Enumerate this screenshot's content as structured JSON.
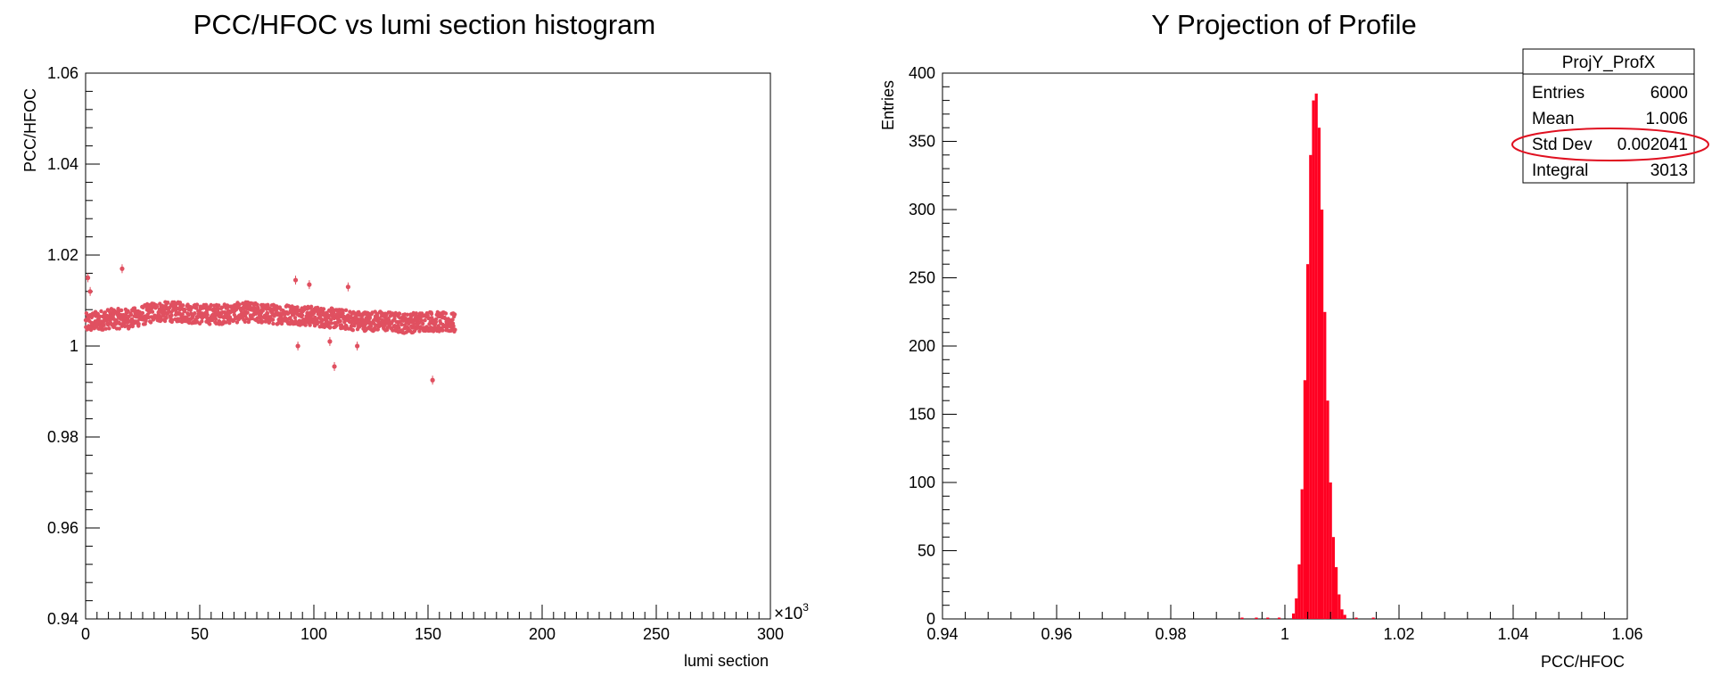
{
  "chart_data": [
    {
      "type": "scatter",
      "title": "PCC/HFOC vs lumi section histogram",
      "xlabel": "lumi section",
      "ylabel": "PCC/HFOC",
      "x_multiplier_label": "×10",
      "x_multiplier_exp": "3",
      "xlim": [
        0,
        300
      ],
      "ylim": [
        0.94,
        1.06
      ],
      "x_ticks": [
        0,
        50,
        100,
        150,
        200,
        250,
        300
      ],
      "x_tick_labels": [
        "0",
        "50",
        "100",
        "150",
        "200",
        "250",
        "300"
      ],
      "y_ticks": [
        0.94,
        0.96,
        0.98,
        1.0,
        1.02,
        1.04,
        1.06
      ],
      "y_tick_labels": [
        "0.94",
        "0.96",
        "0.98",
        "1",
        "1.02",
        "1.04",
        "1.06"
      ],
      "marker_color": "#e05060",
      "band": {
        "x_start": 0,
        "x_end": 162,
        "center_profile": [
          [
            0,
            1.005
          ],
          [
            10,
            1.006
          ],
          [
            20,
            1.006
          ],
          [
            30,
            1.0075
          ],
          [
            40,
            1.0075
          ],
          [
            50,
            1.007
          ],
          [
            60,
            1.007
          ],
          [
            70,
            1.0075
          ],
          [
            80,
            1.007
          ],
          [
            90,
            1.007
          ],
          [
            100,
            1.0065
          ],
          [
            110,
            1.006
          ],
          [
            120,
            1.0055
          ],
          [
            130,
            1.0055
          ],
          [
            140,
            1.005
          ],
          [
            150,
            1.0055
          ],
          [
            162,
            1.005
          ]
        ],
        "half_width": 0.0022
      },
      "outliers": [
        [
          1,
          1.015
        ],
        [
          2,
          1.012
        ],
        [
          16,
          1.017
        ],
        [
          92,
          1.0145
        ],
        [
          98,
          1.0135
        ],
        [
          93,
          1.0
        ],
        [
          109,
          0.9955
        ],
        [
          107,
          1.001
        ],
        [
          115,
          1.013
        ],
        [
          119,
          1.0
        ],
        [
          152,
          0.9925
        ]
      ]
    },
    {
      "type": "bar",
      "title": "Y Projection of Profile",
      "xlabel": "PCC/HFOC",
      "ylabel": "Entries",
      "xlim": [
        0.94,
        1.06
      ],
      "ylim": [
        0,
        400
      ],
      "x_ticks": [
        0.94,
        0.96,
        0.98,
        1.0,
        1.02,
        1.04,
        1.06
      ],
      "x_tick_labels": [
        "0.94",
        "0.96",
        "0.98",
        "1",
        "1.02",
        "1.04",
        "1.06"
      ],
      "y_ticks": [
        0,
        50,
        100,
        150,
        200,
        250,
        300,
        350,
        400
      ],
      "y_tick_labels": [
        "0",
        "50",
        "100",
        "150",
        "200",
        "250",
        "300",
        "350",
        "400"
      ],
      "bar_color": "#ff0022",
      "bin_width": 0.0005,
      "bins": [
        {
          "x": 1.0015,
          "y": 4
        },
        {
          "x": 1.002,
          "y": 15
        },
        {
          "x": 1.0025,
          "y": 40
        },
        {
          "x": 1.003,
          "y": 95
        },
        {
          "x": 1.0035,
          "y": 175
        },
        {
          "x": 1.004,
          "y": 260
        },
        {
          "x": 1.0045,
          "y": 340
        },
        {
          "x": 1.005,
          "y": 380
        },
        {
          "x": 1.0055,
          "y": 385
        },
        {
          "x": 1.006,
          "y": 360
        },
        {
          "x": 1.0065,
          "y": 300
        },
        {
          "x": 1.007,
          "y": 225
        },
        {
          "x": 1.0075,
          "y": 160
        },
        {
          "x": 1.008,
          "y": 100
        },
        {
          "x": 1.0085,
          "y": 60
        },
        {
          "x": 1.009,
          "y": 38
        },
        {
          "x": 1.0095,
          "y": 18
        },
        {
          "x": 1.01,
          "y": 7
        },
        {
          "x": 1.0105,
          "y": 3
        }
      ],
      "stray_bins": [
        {
          "x": 0.9925,
          "y": 1
        },
        {
          "x": 0.995,
          "y": 1
        },
        {
          "x": 0.997,
          "y": 1
        },
        {
          "x": 0.999,
          "y": 1
        },
        {
          "x": 1.0125,
          "y": 1
        },
        {
          "x": 1.0155,
          "y": 1
        }
      ],
      "stats_box": {
        "title": "ProjY_ProfX",
        "rows": [
          {
            "label": "Entries",
            "value": "6000"
          },
          {
            "label": "Mean",
            "value": "1.006"
          },
          {
            "label": "Std Dev",
            "value": "0.002041"
          },
          {
            "label": "Integral",
            "value": "3013"
          }
        ],
        "highlight_row": "Std Dev",
        "highlight_color": "#e01020"
      }
    }
  ]
}
